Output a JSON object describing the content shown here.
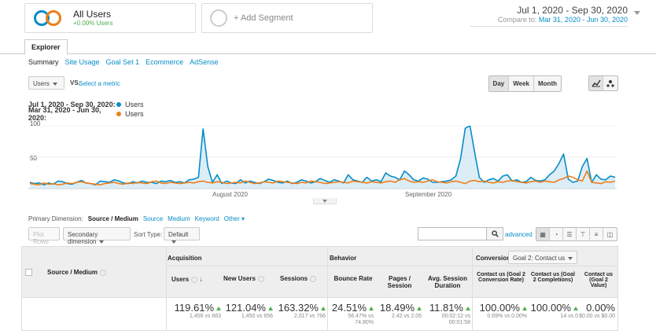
{
  "segments": {
    "all_users": {
      "title": "All Users",
      "subtitle": "+0.00% Users"
    },
    "add_segment": {
      "label": "+ Add Segment"
    }
  },
  "date_range": {
    "main": "Jul 1, 2020 - Sep 30, 2020",
    "compare_prefix": "Compare to:",
    "compare": "Mar 31, 2020 - Jun 30, 2020"
  },
  "tabs": {
    "explorer": "Explorer"
  },
  "subtabs": [
    "Summary",
    "Site Usage",
    "Goal Set 1",
    "Ecommerce",
    "AdSense"
  ],
  "metric_bar": {
    "metric": "Users",
    "vs": "VS.",
    "select_metric": "Select a metric",
    "granularity": [
      "Day",
      "Week",
      "Month"
    ],
    "active_granularity": "Day"
  },
  "legend": [
    {
      "range": "Jul 1, 2020 - Sep 30, 2020:",
      "name": "Users",
      "color": "#058dc7"
    },
    {
      "range": "Mar 31, 2020 - Jun 30, 2020:",
      "name": "Users",
      "color": "#ed7e17"
    }
  ],
  "chart_data": {
    "type": "line",
    "ylabels": [
      "100",
      "50"
    ],
    "ylim": [
      0,
      120
    ],
    "xlabels": [
      "August 2020",
      "September 2020"
    ],
    "series": [
      {
        "name": "Users",
        "color": "#058dc7",
        "fill": "#cfe6f4",
        "values": [
          10,
          8,
          9,
          6,
          9,
          7,
          12,
          11,
          8,
          7,
          10,
          13,
          9,
          8,
          6,
          12,
          11,
          10,
          14,
          12,
          9,
          8,
          11,
          9,
          12,
          10,
          10,
          8,
          12,
          11,
          13,
          10,
          11,
          9,
          14,
          15,
          18,
          95,
          35,
          10,
          22,
          8,
          12,
          9,
          8,
          14,
          9,
          12,
          10,
          8,
          11,
          15,
          13,
          10,
          9,
          12,
          8,
          10,
          14,
          12,
          9,
          11,
          16,
          13,
          10,
          14,
          12,
          9,
          22,
          14,
          12,
          10,
          18,
          12,
          14,
          11,
          25,
          20,
          18,
          14,
          28,
          22,
          14,
          12,
          17,
          15,
          10,
          10,
          11,
          12,
          14,
          20,
          48,
          96,
          100,
          58,
          18,
          10,
          14,
          16,
          12,
          20,
          22,
          12,
          14,
          10,
          11,
          18,
          13,
          12,
          14,
          22,
          28,
          40,
          55,
          15,
          10,
          12,
          35,
          48,
          10,
          22,
          15,
          14,
          20,
          18
        ]
      },
      {
        "name": "Users",
        "color": "#ed7e17",
        "values": [
          8,
          7,
          6,
          9,
          7,
          8,
          6,
          7,
          9,
          8,
          10,
          11,
          9,
          8,
          7,
          6,
          8,
          9,
          10,
          8,
          7,
          9,
          8,
          10,
          9,
          8,
          11,
          12,
          9,
          8,
          10,
          9,
          8,
          9,
          10,
          9,
          11,
          12,
          10,
          9,
          11,
          10,
          8,
          9,
          10,
          9,
          12,
          10,
          8,
          9,
          11,
          10,
          9,
          12,
          11,
          10,
          9,
          8,
          10,
          9,
          12,
          11,
          10,
          8,
          9,
          10,
          11,
          10,
          9,
          12,
          11,
          10,
          9,
          11,
          10,
          9,
          11,
          12,
          10,
          14,
          16,
          12,
          10,
          11,
          10,
          12,
          14,
          11,
          10,
          9,
          11,
          12,
          10,
          8,
          12,
          13,
          11,
          12,
          10,
          9,
          11,
          10,
          12,
          13,
          11,
          10,
          9,
          11,
          12,
          10,
          12,
          11,
          10,
          14,
          16,
          20,
          18,
          14,
          12,
          28,
          10,
          9,
          8,
          11,
          10,
          12
        ]
      }
    ]
  },
  "primary_dimension": {
    "label": "Primary Dimension:",
    "active": "Source / Medium",
    "options": [
      "Source",
      "Medium",
      "Keyword",
      "Other"
    ]
  },
  "toolbar": {
    "plot_rows": "Plot Rows",
    "secondary_dimension": "Secondary dimension",
    "sort_type_label": "Sort Type:",
    "sort_type": "Default",
    "advanced": "advanced"
  },
  "table": {
    "dimension_header": "Source / Medium",
    "groups": {
      "acquisition": "Acquisition",
      "behavior": "Behavior",
      "conversions": "Conversions",
      "goal_select": "Goal 2: Contact us"
    },
    "columns": [
      {
        "label": "Users",
        "value": "119.61%",
        "detail": "1,456 vs 663"
      },
      {
        "label": "New Users",
        "value": "121.04%",
        "detail": "1,450 vs 656"
      },
      {
        "label": "Sessions",
        "value": "163.32%",
        "detail": "2,017 vs 766"
      },
      {
        "label": "Bounce Rate",
        "value": "24.51%",
        "detail": "56.47% vs",
        "detail2": "74.80%"
      },
      {
        "label": "Pages / Session",
        "value": "18.49%",
        "detail": "2.42 vs 2.05"
      },
      {
        "label": "Avg. Session Duration",
        "value": "11.81%",
        "detail": "00:02:12 vs",
        "detail2": "00:01:58"
      },
      {
        "label": "Contact us (Goal 2 Conversion Rate)",
        "value": "100.00%",
        "detail": "0.69% vs 0.00%"
      },
      {
        "label": "Contact us (Goal 2 Completions)",
        "value": "100.00%",
        "detail": "14 vs 0"
      },
      {
        "label": "Contact us (Goal 2 Value)",
        "value": "0.00%",
        "detail": "$0.00 vs $0.00"
      }
    ]
  }
}
